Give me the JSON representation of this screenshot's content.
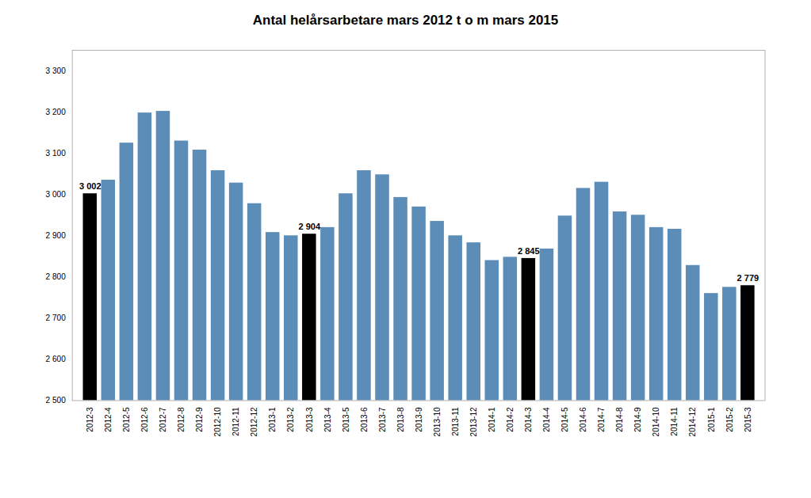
{
  "chart_data": {
    "type": "bar",
    "title": "Antal helårsarbetare mars 2012 t o m mars 2015",
    "categories": [
      "2012-3",
      "2012-4",
      "2012-5",
      "2012-6",
      "2012-7",
      "2012-8",
      "2012-9",
      "2012-10",
      "2012-11",
      "2012-12",
      "2013-1",
      "2013-2",
      "2013-3",
      "2013-4",
      "2013-5",
      "2013-6",
      "2013-7",
      "2013-8",
      "2013-9",
      "2013-10",
      "2013-11",
      "2013-12",
      "2014-1",
      "2014-2",
      "2014-3",
      "2014-4",
      "2014-5",
      "2014-6",
      "2014-7",
      "2014-8",
      "2014-9",
      "2014-10",
      "2014-11",
      "2014-12",
      "2015-1",
      "2015-2",
      "2015-3"
    ],
    "values": [
      3002,
      3035,
      3125,
      3198,
      3202,
      3130,
      3108,
      3058,
      3028,
      2978,
      2908,
      2900,
      2904,
      2920,
      3002,
      3058,
      3048,
      2993,
      2970,
      2935,
      2900,
      2883,
      2840,
      2848,
      2845,
      2868,
      2948,
      3015,
      3030,
      2958,
      2950,
      2920,
      2916,
      2828,
      2760,
      2775,
      2779
    ],
    "colors": [
      "#000000",
      "#5B8DB8",
      "#5B8DB8",
      "#5B8DB8",
      "#5B8DB8",
      "#5B8DB8",
      "#5B8DB8",
      "#5B8DB8",
      "#5B8DB8",
      "#5B8DB8",
      "#5B8DB8",
      "#5B8DB8",
      "#000000",
      "#5B8DB8",
      "#5B8DB8",
      "#5B8DB8",
      "#5B8DB8",
      "#5B8DB8",
      "#5B8DB8",
      "#5B8DB8",
      "#5B8DB8",
      "#5B8DB8",
      "#5B8DB8",
      "#5B8DB8",
      "#000000",
      "#5B8DB8",
      "#5B8DB8",
      "#5B8DB8",
      "#5B8DB8",
      "#5B8DB8",
      "#5B8DB8",
      "#5B8DB8",
      "#5B8DB8",
      "#5B8DB8",
      "#5B8DB8",
      "#5B8DB8",
      "#000000"
    ],
    "ylim": [
      2500,
      3350
    ],
    "yticks": [
      {
        "value": 2500,
        "label": "2 500"
      },
      {
        "value": 2600,
        "label": "2 600"
      },
      {
        "value": 2700,
        "label": "2 700"
      },
      {
        "value": 2800,
        "label": "2 800"
      },
      {
        "value": 2900,
        "label": "2 900"
      },
      {
        "value": 3000,
        "label": "3 000"
      },
      {
        "value": 3100,
        "label": "3 100"
      },
      {
        "value": 3200,
        "label": "3 200"
      },
      {
        "value": 3300,
        "label": "3 300"
      }
    ],
    "annotations": [
      {
        "category": "2012-3",
        "value": 3002,
        "text": "3 002"
      },
      {
        "category": "2013-3",
        "value": 2904,
        "text": "2 904"
      },
      {
        "category": "2014-3",
        "value": 2845,
        "text": "2 845"
      },
      {
        "category": "2015-3",
        "value": 2779,
        "text": "2 779"
      }
    ],
    "grid": false
  }
}
